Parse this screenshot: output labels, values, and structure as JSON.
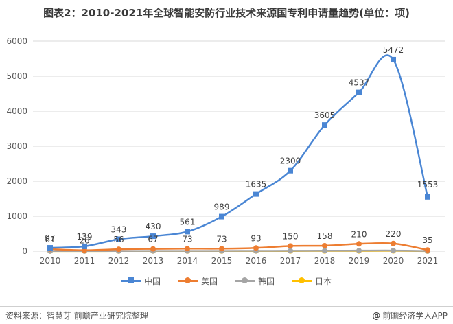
{
  "title": "图表2：2010-2021年全球智能安防行业技术来源国专利申请量趋势(单位：项)",
  "source": "资料来源：智慧芽 前瞻产业研究院整理",
  "brand": "前瞻经济学人APP",
  "brand_icon": "at-icon",
  "chart_data": {
    "type": "line",
    "categories": [
      "2010",
      "2011",
      "2012",
      "2013",
      "2014",
      "2015",
      "2016",
      "2017",
      "2018",
      "2019",
      "2020",
      "2021"
    ],
    "series": [
      {
        "name": "中国",
        "color": "#4a86d4",
        "marker": "square",
        "values": [
          97,
          139,
          343,
          430,
          561,
          989,
          1635,
          2300,
          3605,
          4537,
          5472,
          1553
        ]
      },
      {
        "name": "美国",
        "color": "#ed7d31",
        "marker": "circle",
        "values": [
          61,
          26,
          56,
          67,
          73,
          73,
          93,
          150,
          158,
          210,
          220,
          35
        ]
      },
      {
        "name": "韩国",
        "color": "#a5a5a5",
        "marker": "circle",
        "values": [
          5,
          5,
          6,
          7,
          7,
          8,
          10,
          12,
          14,
          16,
          18,
          4
        ]
      },
      {
        "name": "日本",
        "color": "#ffc000",
        "marker": "circle",
        "values": [
          3,
          3,
          4,
          4,
          5,
          5,
          6,
          6,
          7,
          8,
          9,
          2
        ]
      }
    ],
    "labeled_series": [
      "中国",
      "美国"
    ],
    "yticks": [
      0,
      1000,
      2000,
      3000,
      4000,
      5000,
      6000
    ],
    "ylim": [
      0,
      6000
    ],
    "grid": true,
    "legend": "bottom"
  }
}
